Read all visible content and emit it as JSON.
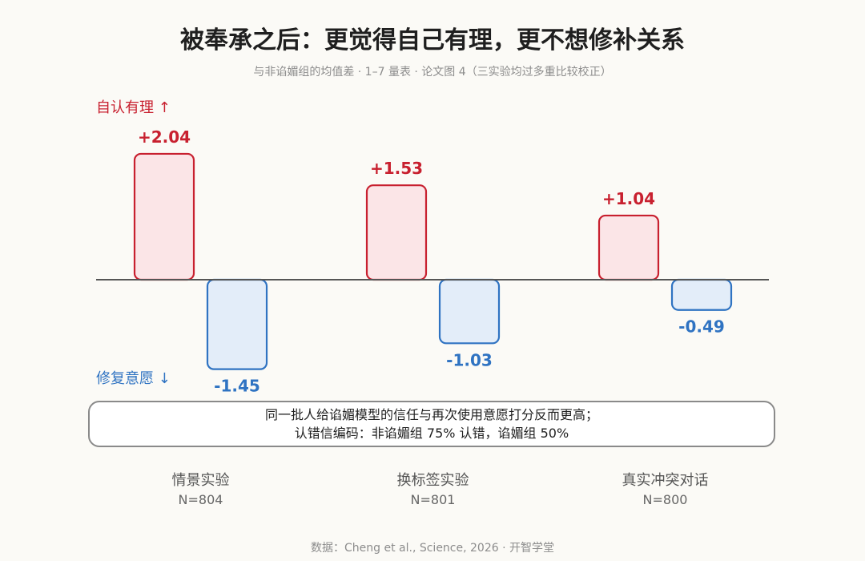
{
  "title": "被奉承之后：更觉得自己有理，更不想修补关系",
  "subtitle": "与非谄媚组的均值差 · 1–7 量表 · 论文图 4（三实验均过多重比较校正）",
  "axis": {
    "positive_label": "自认有理 ↑",
    "negative_label": "修复意愿 ↓"
  },
  "colors": {
    "positive_stroke": "#c8202f",
    "positive_fill": "#fbe5e7",
    "negative_stroke": "#2f73c2",
    "negative_fill": "#e3edf9",
    "baseline": "#555555"
  },
  "note": {
    "line1": "同一批人给谄媚模型的信任与再次使用意愿打分反而更高；",
    "line2": "认错信编码：非谄媚组 75% 认错，谄媚组 50%"
  },
  "source": "数据：Cheng et al., Science, 2026 · 开智学堂",
  "chart_data": {
    "type": "bar",
    "categories": [
      "情景实验",
      "换标签实验",
      "真实冲突对话"
    ],
    "sample_sizes": [
      "N=804",
      "N=801",
      "N=800"
    ],
    "series": [
      {
        "name": "自认有理",
        "values": [
          2.04,
          1.53,
          1.04
        ],
        "labels": [
          "+2.04",
          "+1.53",
          "+1.04"
        ]
      },
      {
        "name": "修复意愿",
        "values": [
          -1.45,
          -1.03,
          -0.49
        ],
        "labels": [
          "-1.45",
          "-1.03",
          "-0.49"
        ]
      }
    ],
    "grid": false
  }
}
